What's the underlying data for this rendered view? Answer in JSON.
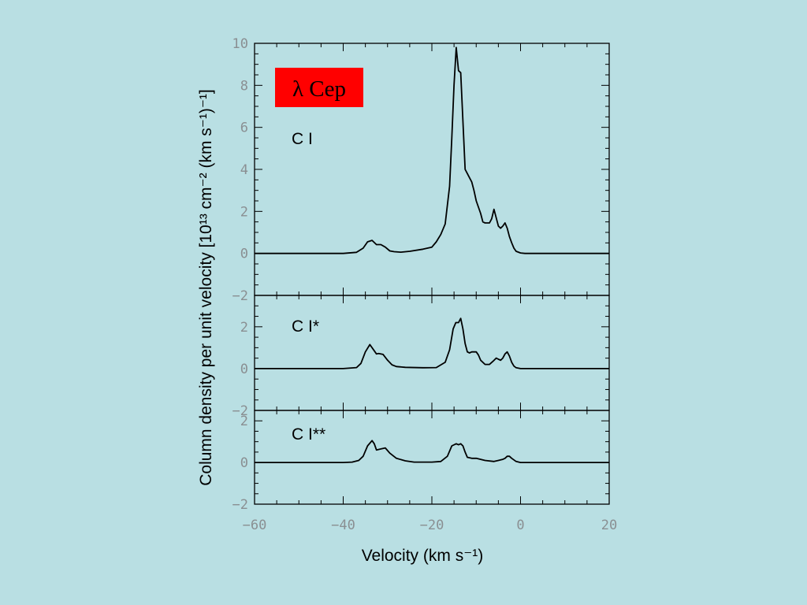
{
  "badge": {
    "text": "λ Cep",
    "color": "#ff0000"
  },
  "chart_data": {
    "type": "line",
    "xlabel": "Velocity (km s⁻¹)",
    "ylabel": "Column density per unit velocity [10¹³ cm⁻² (km s⁻¹)⁻¹]",
    "xlim": [
      -60,
      20
    ],
    "x_ticks": [
      -60,
      -40,
      -20,
      0,
      20
    ],
    "x_tick_labels": [
      "−60",
      "−40",
      "−20",
      "0",
      "20"
    ],
    "panels": [
      {
        "label": "C I",
        "ylim": [
          -2,
          10
        ],
        "y_ticks": [
          -2,
          0,
          2,
          4,
          6,
          8,
          10
        ],
        "y_tick_labels": [
          "−2",
          "0",
          "2",
          "4",
          "6",
          "8",
          "10"
        ],
        "series": [
          {
            "x": [
              -60,
              -40,
              -37,
              -35.5,
              -34.5,
              -33.5,
              -32.5,
              -31.5,
              -30.5,
              -29.5,
              -28.5,
              -27,
              -25,
              -22,
              -20,
              -19,
              -18,
              -17,
              -16,
              -15.5,
              -15,
              -14.5,
              -14,
              -13.5,
              -13,
              -12.5,
              -12,
              -11.5,
              -11,
              -10.5,
              -10,
              -9.5,
              -9,
              -8.5,
              -8,
              -7,
              -6.5,
              -6,
              -5.5,
              -5,
              -4.5,
              -4,
              -3.5,
              -3,
              -2.5,
              -2,
              -1.5,
              -1,
              0,
              1,
              2,
              4,
              20
            ],
            "y": [
              0,
              0,
              0.05,
              0.25,
              0.55,
              0.62,
              0.42,
              0.42,
              0.3,
              0.12,
              0.08,
              0.06,
              0.1,
              0.2,
              0.3,
              0.55,
              0.9,
              1.4,
              3.2,
              5.5,
              8.0,
              9.8,
              8.7,
              8.6,
              6.3,
              4.0,
              3.8,
              3.6,
              3.4,
              3.0,
              2.5,
              2.2,
              1.9,
              1.5,
              1.45,
              1.45,
              1.65,
              2.1,
              1.7,
              1.3,
              1.2,
              1.3,
              1.45,
              1.2,
              0.8,
              0.5,
              0.25,
              0.1,
              0.02,
              0,
              0,
              0,
              0
            ]
          }
        ]
      },
      {
        "label": "C I*",
        "ylim": [
          -2,
          3.5
        ],
        "y_ticks": [
          -2,
          0,
          2
        ],
        "y_tick_labels": [
          "−2",
          "0",
          "2"
        ],
        "series": [
          {
            "x": [
              -60,
              -40,
              -37,
              -36,
              -35,
              -34,
              -33,
              -32.5,
              -32,
              -31,
              -30,
              -29,
              -28,
              -26,
              -22,
              -19,
              -17,
              -16,
              -15.2,
              -14.6,
              -14,
              -13.5,
              -13,
              -12.5,
              -12,
              -11.5,
              -11,
              -10,
              -9.5,
              -9,
              -8,
              -7,
              -6.2,
              -5.5,
              -5,
              -4.5,
              -4,
              -3.5,
              -3,
              -2.5,
              -2,
              -1.5,
              -1,
              0,
              2,
              20
            ],
            "y": [
              0,
              0,
              0.05,
              0.25,
              0.8,
              1.15,
              0.85,
              0.7,
              0.72,
              0.68,
              0.4,
              0.18,
              0.1,
              0.06,
              0.04,
              0.05,
              0.3,
              0.9,
              1.9,
              2.2,
              2.2,
              2.4,
              1.9,
              1.2,
              0.8,
              0.75,
              0.8,
              0.8,
              0.65,
              0.4,
              0.2,
              0.2,
              0.35,
              0.5,
              0.45,
              0.4,
              0.5,
              0.7,
              0.8,
              0.6,
              0.3,
              0.12,
              0.04,
              0,
              0,
              0
            ]
          }
        ]
      },
      {
        "label": "C I**",
        "ylim": [
          -2,
          2.5
        ],
        "y_ticks": [
          -2,
          0,
          2
        ],
        "y_tick_labels": [
          "−2",
          "0",
          "2"
        ],
        "series": [
          {
            "x": [
              -60,
              -40,
              -38,
              -36.5,
              -35.5,
              -34.5,
              -33.5,
              -33,
              -32.5,
              -31.5,
              -30.5,
              -29.5,
              -28,
              -26,
              -24,
              -20,
              -18,
              -16.5,
              -15.5,
              -14.5,
              -14,
              -13.5,
              -13,
              -12.5,
              -12,
              -11,
              -10,
              -8,
              -6,
              -5,
              -4,
              -3.5,
              -3,
              -2.5,
              -2,
              -1,
              0,
              2,
              20
            ],
            "y": [
              0,
              0,
              0.02,
              0.1,
              0.3,
              0.8,
              1.05,
              0.9,
              0.6,
              0.65,
              0.7,
              0.45,
              0.2,
              0.08,
              0.02,
              0.02,
              0.05,
              0.3,
              0.8,
              0.9,
              0.85,
              0.9,
              0.8,
              0.5,
              0.25,
              0.2,
              0.2,
              0.1,
              0.05,
              0.1,
              0.15,
              0.2,
              0.3,
              0.3,
              0.2,
              0.05,
              0,
              0,
              0
            ]
          }
        ]
      }
    ]
  }
}
